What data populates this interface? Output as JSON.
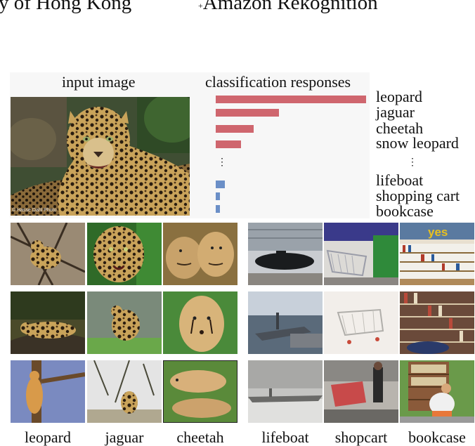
{
  "header": {
    "left_text": "y of Hong Kong",
    "right_marker": "+",
    "right_text": "Amazon Rekognition"
  },
  "panel": {
    "input_title": "input image",
    "responses_title": "classification responses",
    "watermark": "© Hasse Dahl Photo",
    "responses": [
      {
        "label": "leopard",
        "score": 1.0,
        "polarity": "positive"
      },
      {
        "label": "jaguar",
        "score": 0.42,
        "polarity": "positive"
      },
      {
        "label": "cheetah",
        "score": 0.25,
        "polarity": "positive"
      },
      {
        "label": "snow leopard",
        "score": 0.17,
        "polarity": "positive"
      },
      {
        "label": "lifeboat",
        "score": 0.06,
        "polarity": "negative"
      },
      {
        "label": "shopping cart",
        "score": 0.03,
        "polarity": "negative"
      },
      {
        "label": "bookcase",
        "score": 0.03,
        "polarity": "negative"
      }
    ],
    "bar_colors": {
      "positive": "#cf666e",
      "negative": "#6b8fc7"
    },
    "ellipsis": "⋮"
  },
  "grid": {
    "captions": [
      "leopard",
      "jaguar",
      "cheetah",
      "lifeboat",
      "shopcart",
      "bookcase"
    ],
    "sign_text": "yes"
  }
}
